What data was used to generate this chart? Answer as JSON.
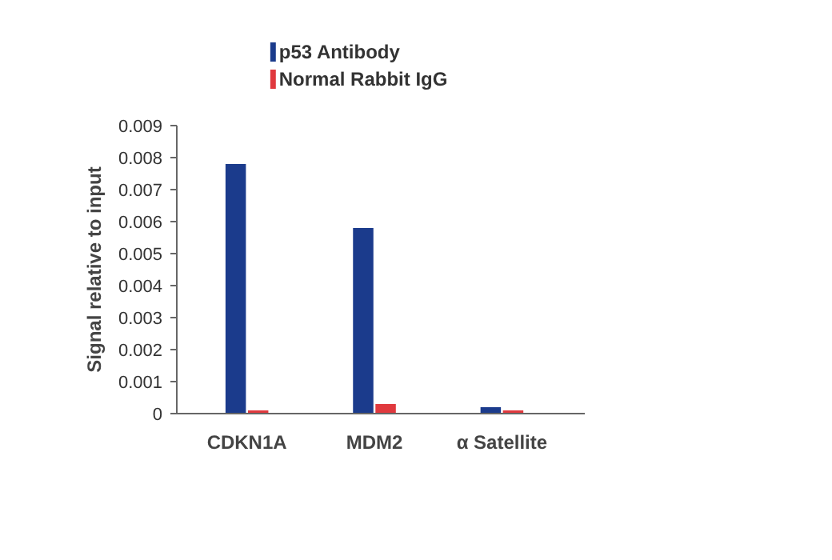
{
  "chart_data": {
    "type": "bar",
    "categories": [
      "CDKN1A",
      "MDM2",
      "α Satellite"
    ],
    "series": [
      {
        "name": "p53 Antibody",
        "color": "#1b3b8c",
        "values": [
          0.0078,
          0.0058,
          0.0002
        ]
      },
      {
        "name": "Normal Rabbit IgG",
        "color": "#e0393e",
        "values": [
          0.0001,
          0.0003,
          0.0001
        ]
      }
    ],
    "ylabel": "Signal relative to input",
    "ylim": [
      0,
      0.009
    ],
    "yticks": [
      0,
      0.001,
      0.002,
      0.003,
      0.004,
      0.005,
      0.006,
      0.007,
      0.008,
      0.009
    ],
    "grid": false,
    "legend": "top left"
  }
}
